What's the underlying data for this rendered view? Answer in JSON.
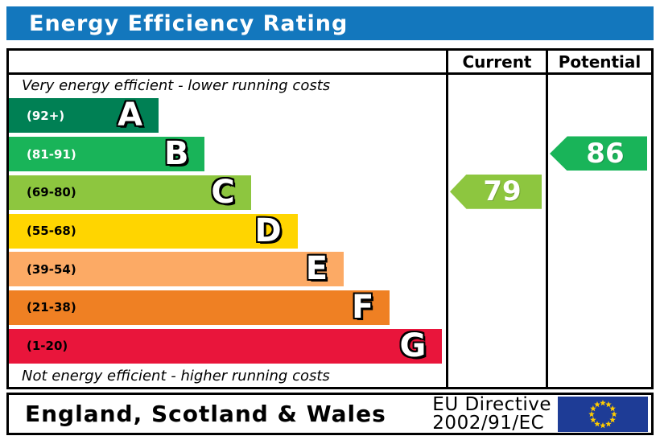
{
  "title": "Energy Efficiency Rating",
  "columns": {
    "current": "Current",
    "potential": "Potential"
  },
  "captions": {
    "top": "Very energy efficient - lower running costs",
    "bottom": "Not energy efficient - higher running costs"
  },
  "bands": [
    {
      "letter": "A",
      "range": "(92+)",
      "color": "#008054",
      "label_color": "#ffffff",
      "width_pct": 34.4
    },
    {
      "letter": "B",
      "range": "(81-91)",
      "color": "#19b459",
      "label_color": "#ffffff",
      "width_pct": 45.0
    },
    {
      "letter": "C",
      "range": "(69-80)",
      "color": "#8dc63f",
      "label_color": "#000000",
      "width_pct": 55.6
    },
    {
      "letter": "D",
      "range": "(55-68)",
      "color": "#ffd500",
      "label_color": "#000000",
      "width_pct": 66.3
    },
    {
      "letter": "E",
      "range": "(39-54)",
      "color": "#fcaa65",
      "label_color": "#000000",
      "width_pct": 76.9
    },
    {
      "letter": "F",
      "range": "(21-38)",
      "color": "#ef8023",
      "label_color": "#000000",
      "width_pct": 87.5
    },
    {
      "letter": "G",
      "range": "(1-20)",
      "color": "#e9153b",
      "label_color": "#000000",
      "width_pct": 99.5
    }
  ],
  "ratings": {
    "current": {
      "value": "79",
      "band": "C",
      "band_index": 2,
      "color": "#8dc63f"
    },
    "potential": {
      "value": "86",
      "band": "B",
      "band_index": 1,
      "color": "#19b459"
    }
  },
  "footer": {
    "region": "England, Scotland & Wales",
    "directive_line1": "EU Directive",
    "directive_line2": "2002/91/EC"
  },
  "colors": {
    "title_bg": "#1377bd",
    "eu_flag_bg": "#1e3c96",
    "eu_star": "#ffcc00"
  },
  "chart_data": {
    "type": "bar",
    "title": "Energy Efficiency Rating",
    "categories": [
      "A",
      "B",
      "C",
      "D",
      "E",
      "F",
      "G"
    ],
    "band_ranges": [
      "92+",
      "81-91",
      "69-80",
      "55-68",
      "39-54",
      "21-38",
      "1-20"
    ],
    "band_colors": [
      "#008054",
      "#19b459",
      "#8dc63f",
      "#ffd500",
      "#fcaa65",
      "#ef8023",
      "#e9153b"
    ],
    "bar_widths_pct": [
      34.4,
      45.0,
      55.6,
      66.3,
      76.9,
      87.5,
      99.5
    ],
    "series": [
      {
        "name": "Current",
        "value": 79,
        "band": "C"
      },
      {
        "name": "Potential",
        "value": 86,
        "band": "B"
      }
    ],
    "top_note": "Very energy efficient - lower running costs",
    "bottom_note": "Not energy efficient - higher running costs",
    "region": "England, Scotland & Wales",
    "directive": "EU Directive 2002/91/EC"
  }
}
